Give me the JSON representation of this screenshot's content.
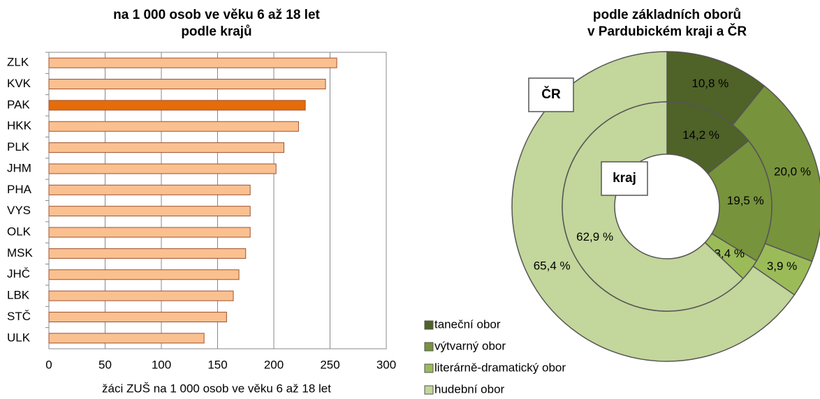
{
  "chart_data": [
    {
      "type": "bar",
      "orientation": "horizontal",
      "title": [
        "na 1 000 osob ve věku 6 až 18 let",
        "podle krajů"
      ],
      "xlabel": "žáci ZUŠ na 1 000 osob ve věku 6 až 18 let",
      "categories": [
        "ZLK",
        "KVK",
        "PAK",
        "HKK",
        "PLK",
        "JHM",
        "PHA",
        "VYS",
        "OLK",
        "MSK",
        "JHČ",
        "LBK",
        "STČ",
        "ULK"
      ],
      "values": [
        256,
        246,
        228,
        222,
        209,
        202,
        179,
        179,
        179,
        175,
        169,
        164,
        158,
        138
      ],
      "colors": [
        "#fac090",
        "#fac090",
        "#e46c0a",
        "#fac090",
        "#fac090",
        "#fac090",
        "#fac090",
        "#fac090",
        "#fac090",
        "#fac090",
        "#fac090",
        "#fac090",
        "#fac090",
        "#fac090"
      ],
      "xlim": [
        0,
        300
      ],
      "xticks": [
        0,
        50,
        100,
        150,
        200,
        250,
        300
      ],
      "grid": true
    },
    {
      "type": "pie",
      "donut": true,
      "title": [
        "podle základních oborů",
        "v Pardubickém kraji a ČR"
      ],
      "categories": [
        "taneční obor",
        "výtvarný obor",
        "literárně-dramatický obor",
        "hudební obor"
      ],
      "colors": [
        "#4f6228",
        "#77933c",
        "#9bbb59",
        "#c3d69b"
      ],
      "series": [
        {
          "name": "ČR",
          "values": [
            10.8,
            20.0,
            3.9,
            65.4
          ],
          "value_labels": [
            "10,8 %",
            "20,0 %",
            "3,9 %",
            "65,4 %"
          ]
        },
        {
          "name": "kraj",
          "values": [
            14.2,
            19.5,
            3.4,
            62.9
          ],
          "value_labels": [
            "14,2 %",
            "19,5 %",
            "3,4 %",
            "62,9 %"
          ]
        }
      ]
    }
  ]
}
